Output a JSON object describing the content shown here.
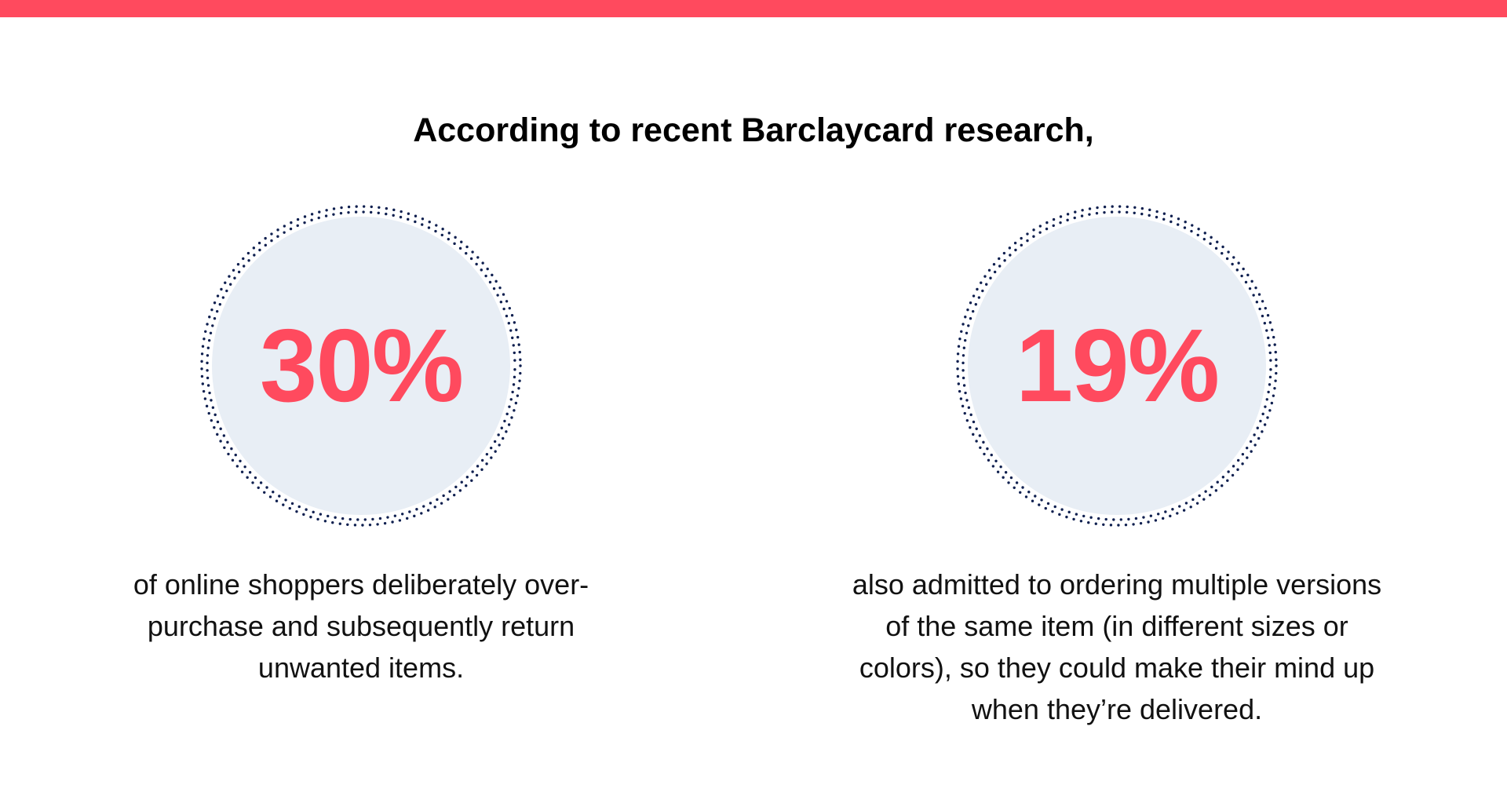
{
  "colors": {
    "accent": "#ff4a5e",
    "circle_fill": "#e8eef5",
    "dots": "#0e1f4f"
  },
  "headline": "According to recent Barclaycard research,",
  "stats": [
    {
      "value": "30%",
      "caption": "of online shoppers deliberately over-purchase and subsequently return unwanted items."
    },
    {
      "value": "19%",
      "caption": "also admitted to ordering multiple versions of the same item (in different sizes or colors), so they could make their mind up when they’re delivered."
    }
  ]
}
